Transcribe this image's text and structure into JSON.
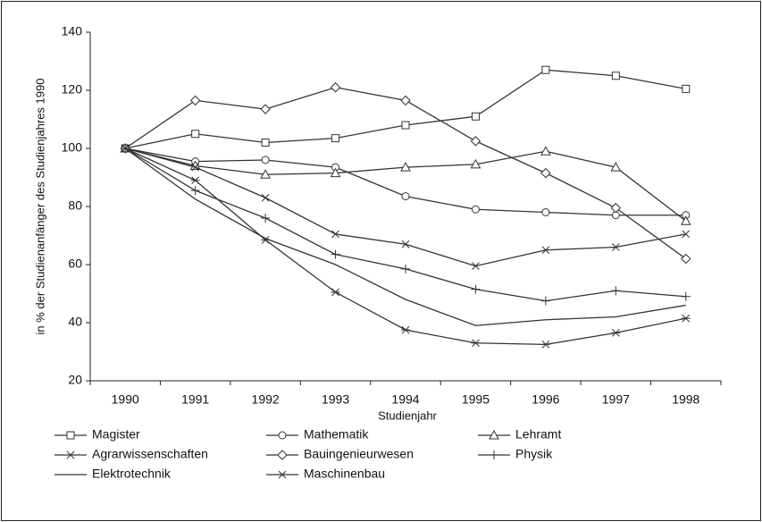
{
  "chart_data": {
    "type": "line",
    "x_label": "Studienjahr",
    "y_label": "in % der Studienanfänger des Studienjahres 1990",
    "categories": [
      "1990",
      "1991",
      "1992",
      "1993",
      "1994",
      "1995",
      "1996",
      "1997",
      "1998"
    ],
    "ylim": [
      20,
      140
    ],
    "yticks": [
      20,
      40,
      60,
      80,
      100,
      120,
      140
    ],
    "legend": "bottom",
    "series": [
      {
        "name": "Magister",
        "color": "#333333",
        "marker": "square",
        "values": [
          100,
          105,
          102,
          103.5,
          108,
          111,
          127,
          125,
          120.5
        ]
      },
      {
        "name": "Mathematik",
        "color": "#333333",
        "marker": "circle",
        "values": [
          100,
          95.5,
          96,
          93.5,
          83.5,
          79,
          78,
          77,
          77
        ]
      },
      {
        "name": "Lehramt",
        "color": "#333333",
        "marker": "triangle",
        "values": [
          100,
          94,
          91,
          91.5,
          93.5,
          94.5,
          99,
          93.5,
          75
        ]
      },
      {
        "name": "Agrarwissenschaften",
        "color": "#333333",
        "marker": "x",
        "values": [
          100,
          93.5,
          83,
          70.5,
          67,
          59.5,
          65,
          66,
          70.5
        ]
      },
      {
        "name": "Bauingenieurwesen",
        "color": "#333333",
        "marker": "diamond",
        "values": [
          100,
          116.5,
          113.5,
          121,
          116.5,
          102.5,
          91.5,
          79.5,
          62
        ]
      },
      {
        "name": "Physik",
        "color": "#333333",
        "marker": "plus",
        "values": [
          100,
          85.5,
          76,
          63.5,
          58.5,
          51.5,
          47.5,
          51,
          49
        ]
      },
      {
        "name": "Elektrotechnik",
        "color": "#333333",
        "marker": "none",
        "values": [
          100,
          82.5,
          69,
          60,
          48,
          39,
          41,
          42,
          46
        ]
      },
      {
        "name": "Maschinenbau",
        "color": "#333333",
        "marker": "asterisk",
        "values": [
          100,
          89,
          68.5,
          50.5,
          37.5,
          33,
          32.5,
          36.5,
          41.5
        ]
      }
    ]
  }
}
